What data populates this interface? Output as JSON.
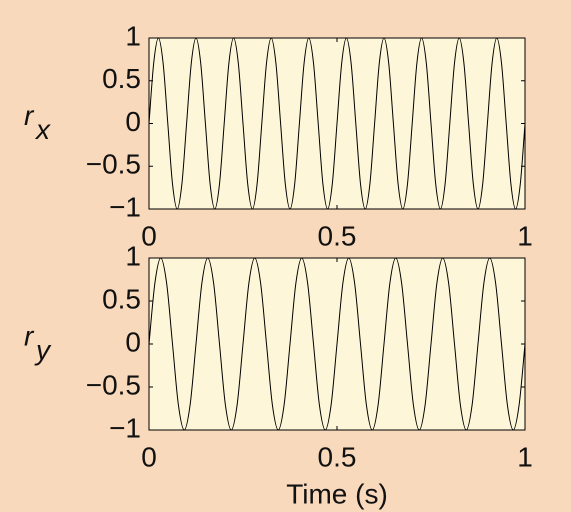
{
  "chart_data": [
    {
      "type": "line",
      "ylabel": "r",
      "ylabel_sub": "x",
      "color": "#000000",
      "xlim": [
        0,
        1
      ],
      "ylim": [
        -1,
        1
      ],
      "xticks": [
        0,
        0.5,
        1
      ],
      "yticks": [
        {
          "value": -1,
          "label": "−1"
        },
        {
          "value": -0.5,
          "label": "−0.5"
        },
        0,
        0.5,
        1
      ],
      "x": [
        0,
        0.0125,
        0.025,
        0.0375,
        0.05,
        0.0625,
        0.075,
        0.0875,
        0.1,
        0.1125,
        0.125,
        0.1375,
        0.15,
        0.1625,
        0.175,
        0.1875,
        0.2,
        0.2125,
        0.225,
        0.2375,
        0.25,
        0.2625,
        0.275,
        0.2875,
        0.3,
        0.3125,
        0.325,
        0.3375,
        0.35,
        0.3625,
        0.375,
        0.3875,
        0.4,
        0.4125,
        0.425,
        0.4375,
        0.45,
        0.4625,
        0.475,
        0.4875,
        0.5,
        0.5125,
        0.525,
        0.5375,
        0.55,
        0.5625,
        0.575,
        0.5875,
        0.6,
        0.6125,
        0.625,
        0.6375,
        0.65,
        0.6625,
        0.675,
        0.6875,
        0.7,
        0.7125,
        0.725,
        0.7375,
        0.75,
        0.7625,
        0.775,
        0.7875,
        0.8,
        0.8125,
        0.825,
        0.8375,
        0.85,
        0.8625,
        0.875,
        0.8875,
        0.9,
        0.9125,
        0.925,
        0.9375,
        0.95,
        0.9625,
        0.975,
        0.9875,
        1
      ],
      "values": [
        0,
        0.707,
        1,
        0.707,
        0,
        -0.707,
        -1,
        -0.707,
        0,
        0.707,
        1,
        0.707,
        0,
        -0.707,
        -1,
        -0.707,
        0,
        0.707,
        1,
        0.707,
        0,
        -0.707,
        -1,
        -0.707,
        0,
        0.707,
        1,
        0.707,
        0,
        -0.707,
        -1,
        -0.707,
        0,
        0.707,
        1,
        0.707,
        0,
        -0.707,
        -1,
        -0.707,
        0,
        0.707,
        1,
        0.707,
        0,
        -0.707,
        -1,
        -0.707,
        0,
        0.707,
        1,
        0.707,
        0,
        -0.707,
        -1,
        -0.707,
        0,
        0.707,
        1,
        0.707,
        0,
        -0.707,
        -1,
        -0.707,
        0,
        0.707,
        1,
        0.707,
        0,
        -0.707,
        -1,
        -0.707,
        0,
        0.707,
        1,
        0.707,
        0,
        -0.707,
        -1,
        -0.707,
        0
      ]
    },
    {
      "type": "line",
      "ylabel": "r",
      "ylabel_sub": "y",
      "xlabel": "Time (s)",
      "color": "#000000",
      "xlim": [
        0,
        1
      ],
      "ylim": [
        -1,
        1
      ],
      "xticks": [
        0,
        0.5,
        1
      ],
      "yticks": [
        {
          "value": -1,
          "label": "−1"
        },
        {
          "value": -0.5,
          "label": "−0.5"
        },
        0,
        0.5,
        1
      ],
      "x": [
        0,
        0.015625,
        0.03125,
        0.046875,
        0.0625,
        0.078125,
        0.09375,
        0.109375,
        0.125,
        0.140625,
        0.15625,
        0.171875,
        0.1875,
        0.203125,
        0.21875,
        0.234375,
        0.25,
        0.265625,
        0.28125,
        0.296875,
        0.3125,
        0.328125,
        0.34375,
        0.359375,
        0.375,
        0.390625,
        0.40625,
        0.421875,
        0.4375,
        0.453125,
        0.46875,
        0.484375,
        0.5,
        0.515625,
        0.53125,
        0.546875,
        0.5625,
        0.578125,
        0.59375,
        0.609375,
        0.625,
        0.640625,
        0.65625,
        0.671875,
        0.6875,
        0.703125,
        0.71875,
        0.734375,
        0.75,
        0.765625,
        0.78125,
        0.796875,
        0.8125,
        0.828125,
        0.84375,
        0.859375,
        0.875,
        0.890625,
        0.90625,
        0.921875,
        0.9375,
        0.953125,
        0.96875,
        0.984375,
        1
      ],
      "values": [
        0,
        0.707,
        1,
        0.707,
        0,
        -0.707,
        -1,
        -0.707,
        0,
        0.707,
        1,
        0.707,
        0,
        -0.707,
        -1,
        -0.707,
        0,
        0.707,
        1,
        0.707,
        0,
        -0.707,
        -1,
        -0.707,
        0,
        0.707,
        1,
        0.707,
        0,
        -0.707,
        -1,
        -0.707,
        0,
        0.707,
        1,
        0.707,
        0,
        -0.707,
        -1,
        -0.707,
        0,
        0.707,
        1,
        0.707,
        0,
        -0.707,
        -1,
        -0.707,
        0,
        0.707,
        1,
        0.707,
        0,
        -0.707,
        -1,
        -0.707,
        0,
        0.707,
        1,
        0.707,
        0,
        -0.707,
        -1,
        -0.707,
        0
      ]
    }
  ]
}
